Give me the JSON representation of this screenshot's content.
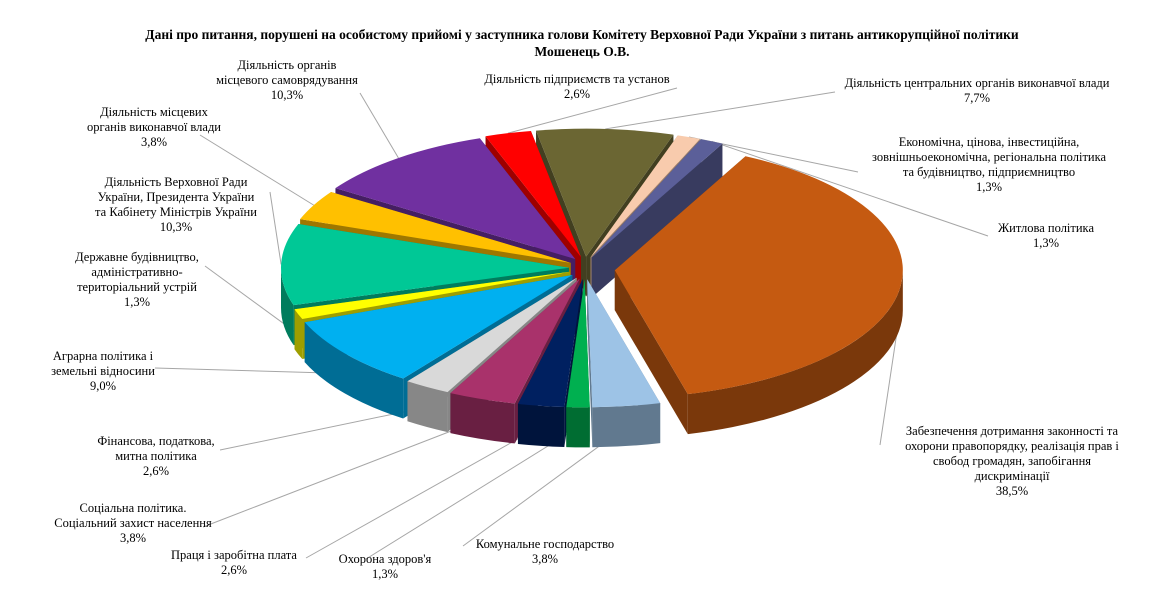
{
  "chart_data": {
    "type": "pie",
    "title": "Дані про питання, порушені на особистому прийомі у заступника голови Комітету Верховної Ради України з питань антикорупційної політики Мошенець О.В.",
    "title_lines": [
      "Дані про питання, порушені на особистому прийомі у заступника голови Комітету Верховної Ради України з питань антикорупційної політики",
      "Мошенець О.В."
    ],
    "three_d": true,
    "exploded": true,
    "slices": [
      {
        "name": "Забезпечення дотримання законності та охорони правопорядку, реалізація  прав і свобод громадян, запобігання дискримінації",
        "lines": [
          "Забезпечення дотримання законності та",
          "охорони правопорядку, реалізація  прав і",
          "свобод громадян, запобігання",
          "дискримінації"
        ],
        "value": 38.5,
        "label": "38,5%",
        "color": "#c55a11"
      },
      {
        "name": "Комунальне господарство",
        "lines": [
          "Комунальне господарство"
        ],
        "value": 3.8,
        "label": "3,8%",
        "color": "#9dc3e6"
      },
      {
        "name": "Охорона здоров'я",
        "lines": [
          "Охорона здоров'я"
        ],
        "value": 1.3,
        "label": "1,3%",
        "color": "#00b050"
      },
      {
        "name": "Праця і заробітна плата",
        "lines": [
          "Праця і заробітна плата"
        ],
        "value": 2.6,
        "label": "2,6%",
        "color": "#002060"
      },
      {
        "name": "Соціальна політика. Соціальний захист населення",
        "lines": [
          "Соціальна політика.",
          "Соціальний захист населення"
        ],
        "value": 3.8,
        "label": "3,8%",
        "color": "#a9326b"
      },
      {
        "name": "Фінансова, податкова, митна політика",
        "lines": [
          "Фінансова, податкова,",
          "митна політика"
        ],
        "value": 2.6,
        "label": "2,6%",
        "color": "#d9d9d9"
      },
      {
        "name": "Аграрна політика і земельні відносини",
        "lines": [
          "Аграрна політика і",
          "земельні відносини"
        ],
        "value": 9.0,
        "label": "9,0%",
        "color": "#00b0f0"
      },
      {
        "name": "Державне будівництво, адміністративно-територіальний устрій",
        "lines": [
          "Державне будівництво,",
          "адміністративно-",
          "територіальний устрій"
        ],
        "value": 1.3,
        "label": "1,3%",
        "color": "#ffff00"
      },
      {
        "name": "Діяльність Верховної Ради України, Президента України та Кабінету Міністрів  України",
        "lines": [
          "Діяльність Верховної Ради",
          "України, Президента України",
          "та Кабінету Міністрів  України"
        ],
        "value": 10.3,
        "label": "10,3%",
        "color": "#00c896"
      },
      {
        "name": "Діяльність місцевих органів виконавчої влади",
        "lines": [
          "Діяльність місцевих",
          "органів виконавчої влади"
        ],
        "value": 3.8,
        "label": "3,8%",
        "color": "#ffc000"
      },
      {
        "name": "Діяльність органів місцевого самоврядування",
        "lines": [
          "Діяльність органів",
          "місцевого самоврядування"
        ],
        "value": 10.3,
        "label": "10,3%",
        "color": "#7030a0"
      },
      {
        "name": "Діяльність підприємств та установ",
        "lines": [
          "Діяльність підприємств та установ"
        ],
        "value": 2.6,
        "label": "2,6%",
        "color": "#ff0000"
      },
      {
        "name": "Діяльність центральних органів виконавчої влади",
        "lines": [
          "Діяльність центральних органів виконавчої влади"
        ],
        "value": 7.7,
        "label": "7,7%",
        "color": "#6b6633"
      },
      {
        "name": "Економічна, цінова, інвестиційна, зовнішньоекономічна, регіональна політика та будівництво, підприємництво",
        "lines": [
          "Економічна, цінова, інвестиційна,",
          "зовнішньоекономічна, регіональна політика",
          "та будівництво, підприємництво"
        ],
        "value": 1.3,
        "label": "1,3%",
        "color": "#f8cbad"
      },
      {
        "name": "Житлова політика",
        "lines": [
          "Житлова політика"
        ],
        "value": 1.3,
        "label": "1,3%",
        "color": "#5b5f99"
      }
    ]
  }
}
